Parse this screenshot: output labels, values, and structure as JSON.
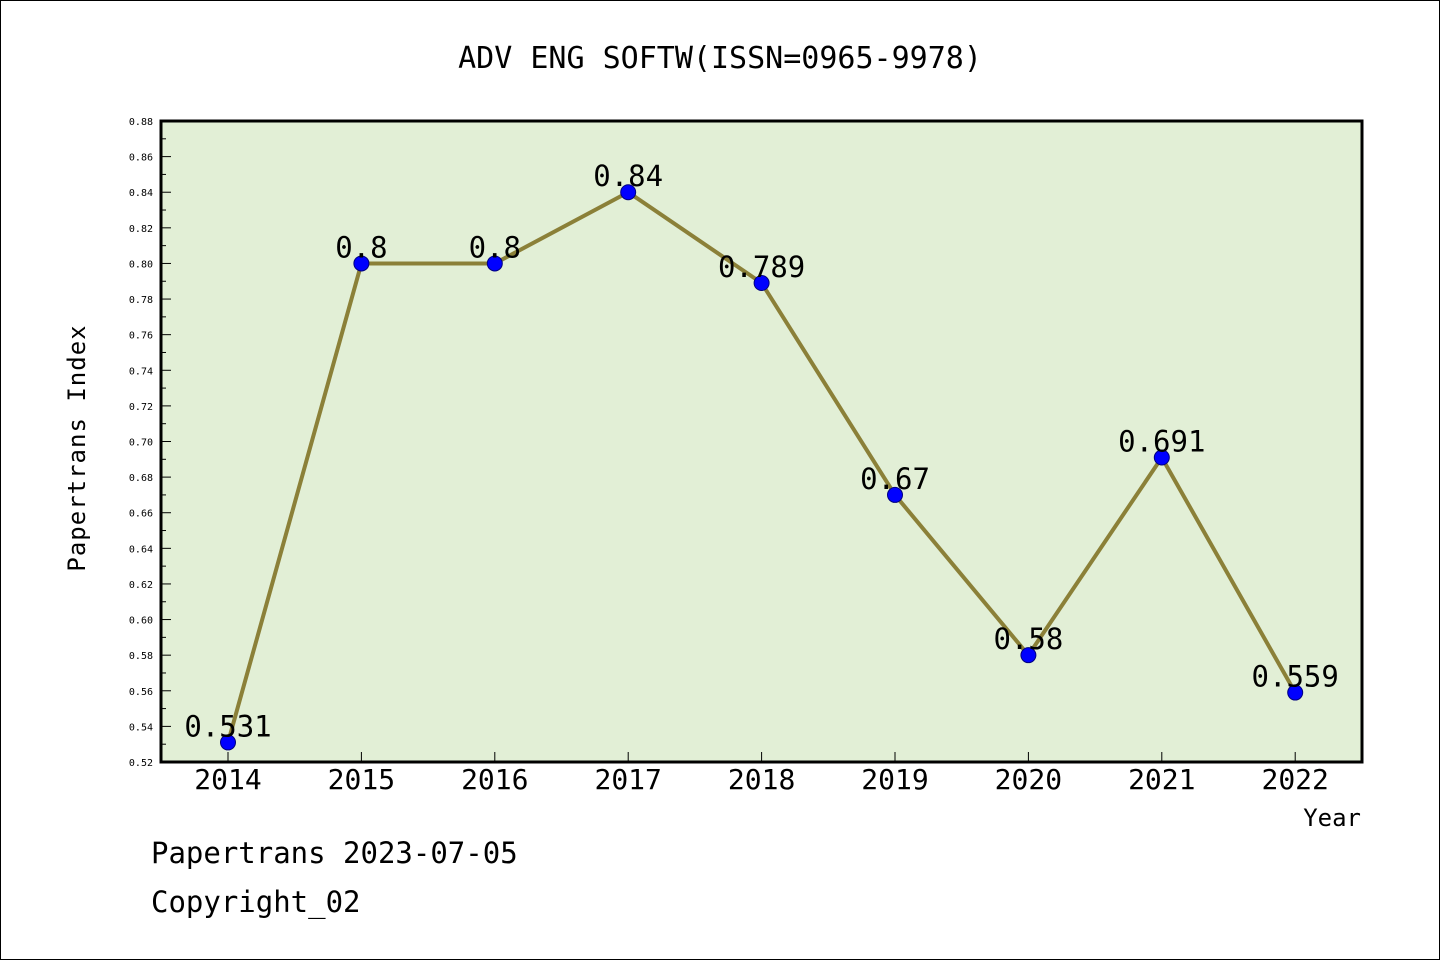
{
  "chart_data": {
    "type": "line",
    "title": "ADV ENG SOFTW(ISSN=0965-9978)",
    "xlabel": "Year",
    "ylabel": "Papertrans Index",
    "categories": [
      "2014",
      "2015",
      "2016",
      "2017",
      "2018",
      "2019",
      "2020",
      "2021",
      "2022"
    ],
    "values": [
      0.531,
      0.8,
      0.8,
      0.84,
      0.789,
      0.67,
      0.58,
      0.691,
      0.559
    ],
    "data_labels": [
      "0.531",
      "0.8",
      "0.8",
      "0.84",
      "0.789",
      "0.67",
      "0.58",
      "0.691",
      "0.559"
    ],
    "ylim": [
      0.52,
      0.88
    ],
    "yticks": [
      "0.52",
      "0.54",
      "0.56",
      "0.58",
      "0.60",
      "0.62",
      "0.64",
      "0.66",
      "0.68",
      "0.70",
      "0.72",
      "0.74",
      "0.76",
      "0.78",
      "0.80",
      "0.82",
      "0.84",
      "0.86",
      "0.88"
    ],
    "grid": false,
    "colors": {
      "plot_background": "#e2efd6",
      "line": "#8b8038",
      "marker": "#0000ff"
    }
  },
  "footer": {
    "line1": "Papertrans 2023-07-05",
    "line2": "Copyright_02"
  }
}
